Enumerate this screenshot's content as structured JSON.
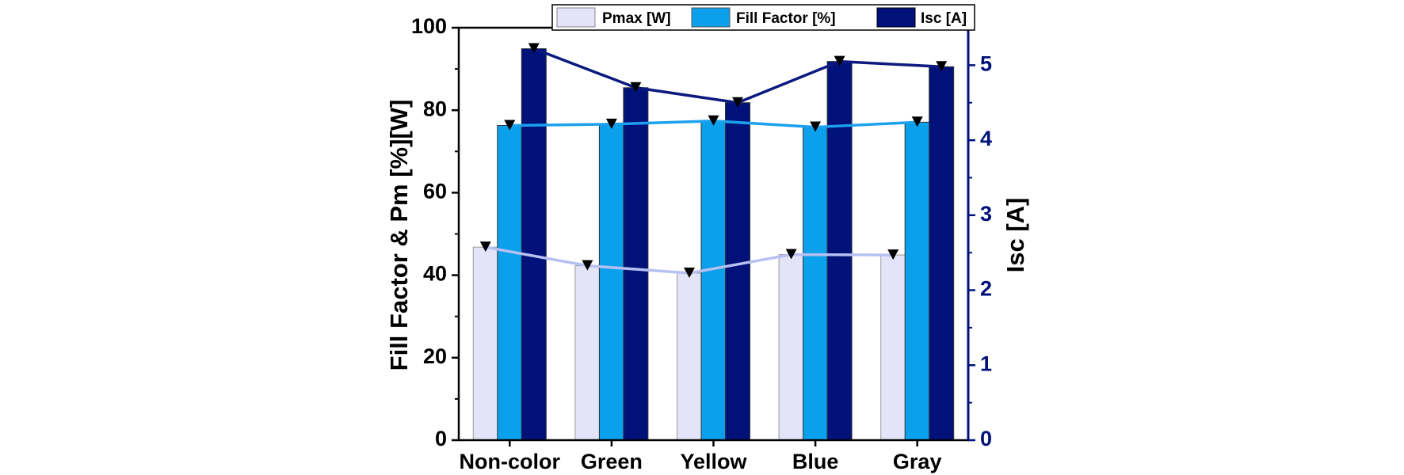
{
  "chart_data": {
    "type": "bar",
    "categories": [
      "Non-color",
      "Green",
      "Yellow",
      "Blue",
      "Gray"
    ],
    "series": [
      {
        "name": "Pmax  [W]",
        "axis": "left",
        "values": [
          46.8,
          42.3,
          40.5,
          45.0,
          44.9
        ],
        "color": "#e3e4f8",
        "line_color": "#b8c0f2"
      },
      {
        "name": "Fill Factor  [%]",
        "axis": "left",
        "values": [
          76.3,
          76.6,
          77.4,
          75.9,
          77.1
        ],
        "color": "#0ba0ec",
        "line_color": "#1da1ee"
      },
      {
        "name": "Isc  [A]",
        "axis": "right",
        "values": [
          5.22,
          4.7,
          4.5,
          5.05,
          4.98
        ],
        "color": "#00127a",
        "line_color": "#0b1a7e"
      }
    ],
    "ylabel": "Fill Factor & Pm  [%][W]",
    "ylim": [
      0,
      100
    ],
    "yticks": [
      "0",
      "20",
      "40",
      "60",
      "80",
      "100"
    ],
    "y2label": "Isc  [A]",
    "y2lim": [
      0,
      5.5
    ],
    "y2ticks": [
      "0",
      "1",
      "2",
      "3",
      "4",
      "5"
    ],
    "marker": "down-triangle",
    "legend_position": "top-right",
    "grid": false
  }
}
